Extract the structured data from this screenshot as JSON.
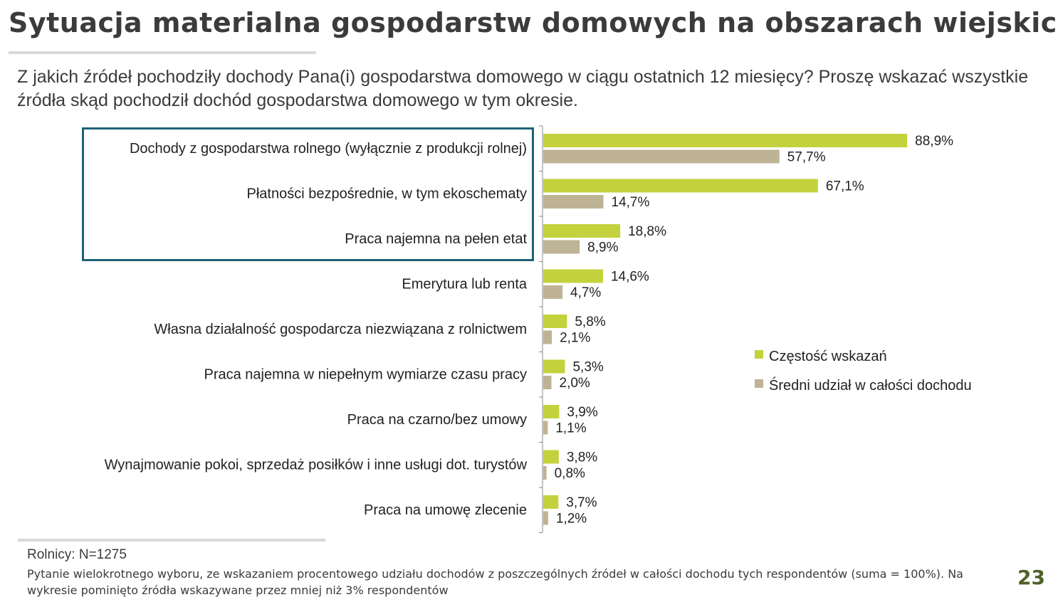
{
  "slide": {
    "title": "Sytuacja materialna gospodarstw domowych na obszarach wiejskich",
    "question": "Z jakich źródeł pochodziły dochody Pana(i) gospodarstwa domowego w ciągu ostatnich 12 miesięcy? Proszę wskazać wszystkie źródła skąd pochodził dochód gospodarstwa domowego w tym okresie.",
    "sample_note": "Rolnicy: N=1275",
    "method_note": "Pytanie wielokrotnego wyboru, ze wskazaniem procentowego udziału dochodów z poszczególnych źródeł w całości dochodu tych respondentów (suma = 100%). Na wykresie pominięto źródła wskazywane przez mniej niż 3% respondentów",
    "page_number": "23"
  },
  "colors": {
    "series_frequency": "#c3d23c",
    "series_share": "#bfb396",
    "highlight_border": "#1f6177",
    "axis": "#888888",
    "text": "#222222"
  },
  "chart_data": {
    "type": "bar",
    "orientation": "horizontal",
    "categories": [
      "Dochody z gospodarstwa rolnego (wyłącznie z produkcji rolnej)",
      "Płatności bezpośrednie, w tym ekoschematy",
      "Praca najemna na pełen etat",
      "Emerytura lub renta",
      "Własna działalność gospodarcza niezwiązana z rolnictwem",
      "Praca najemna w niepełnym wymiarze czasu pracy",
      "Praca na czarno/bez umowy",
      "Wynajmowanie pokoi, sprzedaż posiłków i inne usługi dot. turystów",
      "Praca na umowę zlecenie"
    ],
    "series": [
      {
        "name": "Częstość wskazań",
        "values": [
          88.9,
          67.1,
          18.8,
          14.6,
          5.8,
          5.3,
          3.9,
          3.8,
          3.7
        ],
        "labels": [
          "88,9%",
          "67,1%",
          "18,8%",
          "14,6%",
          "5,8%",
          "5,3%",
          "3,9%",
          "3,8%",
          "3,7%"
        ]
      },
      {
        "name": "Średni udział w całości dochodu",
        "values": [
          57.7,
          14.7,
          8.9,
          4.7,
          2.1,
          2.0,
          1.1,
          0.8,
          1.2
        ],
        "labels": [
          "57,7%",
          "14,7%",
          "8,9%",
          "4,7%",
          "2,1%",
          "2,0%",
          "1,1%",
          "0,8%",
          "1,2%"
        ]
      }
    ],
    "xlim": [
      0,
      100
    ],
    "gridlines": false,
    "legend_position": "right",
    "highlighted_categories": [
      0,
      1,
      2
    ]
  }
}
